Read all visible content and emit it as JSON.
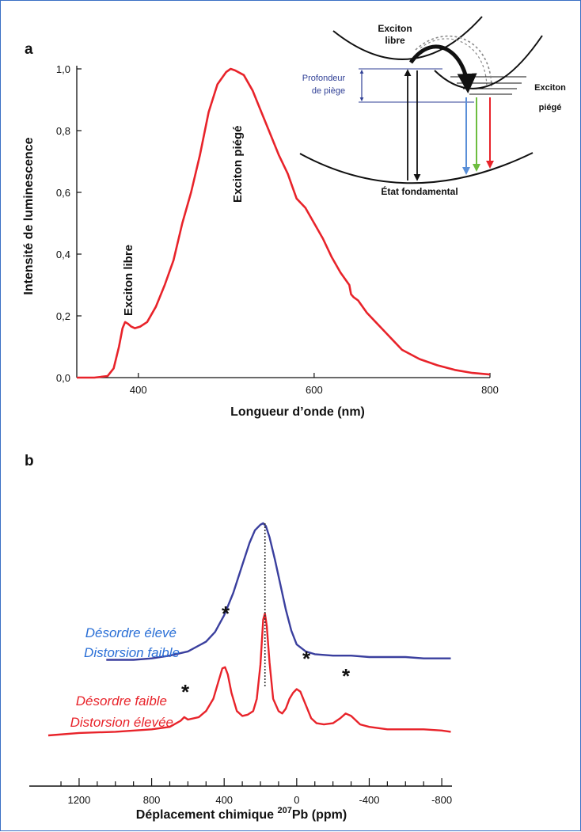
{
  "panel_a": {
    "panel_label": "a",
    "ylabel": "Intensité de luminescence",
    "xlabel": "Longueur d’onde (nm)",
    "y_ticks": [
      "0,0",
      "0,2",
      "0,4",
      "0,6",
      "0,8",
      "1,0"
    ],
    "x_ticks": [
      "400",
      "600",
      "800"
    ],
    "annotations": {
      "free_exciton": "Exciton libre",
      "trapped_exciton": "Exciton piégé"
    },
    "inset": {
      "free_exciton_line1": "Exciton",
      "free_exciton_line2": "libre",
      "trapped_exciton_line1": "Exciton",
      "trapped_exciton_line2": "piégé",
      "trap_depth_line1": "Profondeur",
      "trap_depth_line2": "de piège",
      "ground_state": "État fondamental"
    }
  },
  "panel_b": {
    "panel_label": "b",
    "xlabel_prefix": "Déplacement chimique ",
    "xlabel_sup": "207",
    "xlabel_suffix": "Pb (ppm)",
    "x_ticks": [
      "1200",
      "800",
      "400",
      "0",
      "-400",
      "-800"
    ],
    "blue_label_line1": "Désordre élevé",
    "blue_label_line2": "Distorsion faible",
    "red_label_line1": "Désordre faible",
    "red_label_line2": "Distorsion élevée",
    "star": "*"
  },
  "colors": {
    "red": "#e8232a",
    "blue": "#3a3f9e",
    "label_blue": "#2a6fd6",
    "label_red": "#e8232a",
    "inset_blue": "#2f3f95",
    "arrow_blue": "#5a8fd8",
    "arrow_green": "#6dbd3f",
    "arrow_red": "#e8232a"
  },
  "chart_data": [
    {
      "type": "line",
      "xlabel": "Longueur d’onde (nm)",
      "ylabel": "Intensité de luminescence",
      "xlim": [
        330,
        800
      ],
      "ylim": [
        0,
        1.0
      ],
      "x_ticks": [
        400,
        600,
        800
      ],
      "y_ticks": [
        0,
        0.2,
        0.4,
        0.6,
        0.8,
        1.0
      ],
      "grid": false,
      "series": [
        {
          "color": "#e8232a",
          "x": [
            330,
            350,
            365,
            372,
            378,
            382,
            385,
            388,
            392,
            396,
            402,
            410,
            420,
            430,
            440,
            450,
            460,
            470,
            480,
            490,
            500,
            505,
            510,
            520,
            530,
            540,
            550,
            560,
            570,
            575,
            580,
            590,
            600,
            610,
            620,
            630,
            640,
            642,
            645,
            650,
            660,
            670,
            680,
            690,
            700,
            720,
            740,
            760,
            780,
            800
          ],
          "y": [
            0.0,
            0.0,
            0.005,
            0.03,
            0.1,
            0.16,
            0.18,
            0.175,
            0.165,
            0.16,
            0.165,
            0.18,
            0.23,
            0.3,
            0.38,
            0.5,
            0.6,
            0.72,
            0.86,
            0.95,
            0.99,
            1.0,
            0.995,
            0.98,
            0.93,
            0.86,
            0.79,
            0.72,
            0.66,
            0.62,
            0.58,
            0.55,
            0.5,
            0.45,
            0.39,
            0.34,
            0.3,
            0.27,
            0.26,
            0.25,
            0.21,
            0.18,
            0.15,
            0.12,
            0.09,
            0.06,
            0.04,
            0.025,
            0.015,
            0.01
          ]
        }
      ],
      "annotations": [
        "Exciton libre",
        "Exciton piégé"
      ]
    },
    {
      "type": "line",
      "xlabel": "Déplacement chimique 207Pb (ppm)",
      "xlim": [
        1370,
        -900
      ],
      "x_ticks": [
        1200,
        800,
        400,
        0,
        -400,
        -800
      ],
      "grid": false,
      "series": [
        {
          "name": "Désordre élevé / Distorsion faible",
          "color": "#3a3f9e",
          "x": [
            1050,
            900,
            800,
            700,
            600,
            500,
            450,
            400,
            350,
            300,
            260,
            230,
            200,
            185,
            170,
            150,
            120,
            90,
            60,
            30,
            0,
            -50,
            -100,
            -200,
            -300,
            -400,
            -500,
            -600,
            -700,
            -800,
            -850
          ],
          "y": [
            0.02,
            0.02,
            0.03,
            0.05,
            0.08,
            0.15,
            0.22,
            0.34,
            0.5,
            0.7,
            0.86,
            0.95,
            0.99,
            1.0,
            0.98,
            0.9,
            0.74,
            0.56,
            0.38,
            0.23,
            0.13,
            0.08,
            0.06,
            0.05,
            0.05,
            0.04,
            0.04,
            0.04,
            0.03,
            0.03,
            0.03
          ]
        },
        {
          "name": "Désordre faible / Distorsion élevée",
          "color": "#e8232a",
          "x": [
            1370,
            1200,
            1000,
            800,
            700,
            640,
            620,
            600,
            540,
            500,
            460,
            430,
            410,
            395,
            380,
            360,
            330,
            300,
            270,
            240,
            220,
            200,
            185,
            175,
            165,
            150,
            130,
            100,
            80,
            60,
            40,
            20,
            0,
            -20,
            -50,
            -80,
            -110,
            -150,
            -200,
            -240,
            -270,
            -300,
            -350,
            -400,
            -500,
            -600,
            -700,
            -800,
            -850
          ],
          "y": [
            0.0,
            0.02,
            0.03,
            0.05,
            0.07,
            0.12,
            0.15,
            0.13,
            0.15,
            0.2,
            0.3,
            0.45,
            0.55,
            0.56,
            0.5,
            0.35,
            0.2,
            0.16,
            0.17,
            0.2,
            0.3,
            0.58,
            0.95,
            1.0,
            0.9,
            0.6,
            0.3,
            0.2,
            0.18,
            0.22,
            0.3,
            0.35,
            0.38,
            0.36,
            0.25,
            0.14,
            0.1,
            0.09,
            0.1,
            0.14,
            0.18,
            0.16,
            0.09,
            0.07,
            0.05,
            0.05,
            0.05,
            0.04,
            0.03
          ]
        }
      ],
      "annotations": [
        "*",
        "*",
        "*",
        "*"
      ]
    }
  ]
}
